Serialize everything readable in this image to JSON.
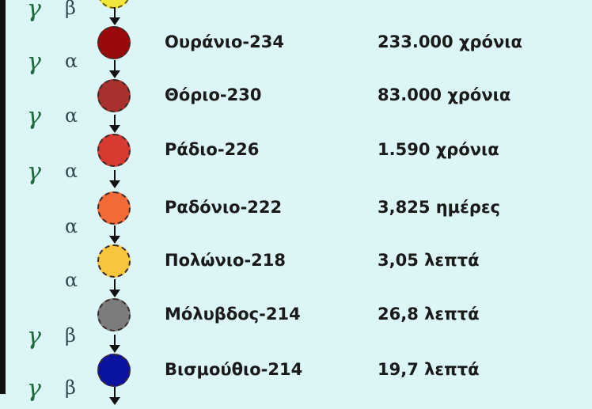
{
  "nuclides": [
    {
      "name": "Ουράνιο-234",
      "half_life": "233.000 χρόνια",
      "color": "#9b0a0a"
    },
    {
      "name": "Θόριο-230",
      "half_life": "83.000 χρόνια",
      "color": "#a8302d"
    },
    {
      "name": "Ράδιο-226",
      "half_life": "1.590 χρόνια",
      "color": "#d63a30"
    },
    {
      "name": "Ραδόνιο-222",
      "half_life": "3,825 ημέρες",
      "color": "#f26a36"
    },
    {
      "name": "Πολώνιο-218",
      "half_life": "3,05 λεπτά",
      "color": "#f7c63c"
    },
    {
      "name": "Μόλυβδος-214",
      "half_life": "26,8 λεπτά",
      "color": "#7c7c7c"
    },
    {
      "name": "Βισμούθιο-214",
      "half_life": "19,7 λεπτά",
      "color": "#0a12a0"
    }
  ],
  "top_partial_color": "#f2e63a",
  "decays": [
    {
      "gamma": "γ",
      "type": "β"
    },
    {
      "gamma": "γ",
      "type": "α"
    },
    {
      "gamma": "γ",
      "type": "α"
    },
    {
      "gamma": "γ",
      "type": "α"
    },
    {
      "gamma": "",
      "type": "α"
    },
    {
      "gamma": "",
      "type": "α"
    },
    {
      "gamma": "γ",
      "type": "β"
    },
    {
      "gamma": "γ",
      "type": "β"
    }
  ]
}
